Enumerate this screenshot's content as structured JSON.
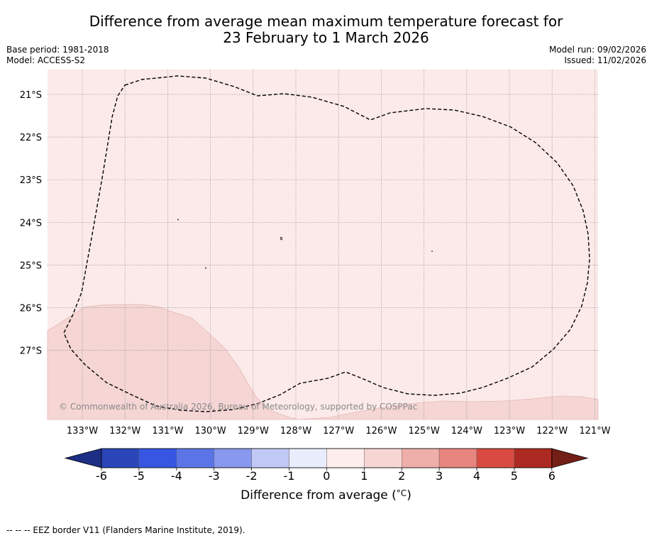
{
  "title": {
    "line1": "Difference from average mean maximum temperature forecast for",
    "line2": "23 February to 1 March 2026"
  },
  "meta": {
    "base_period": "Base period: 1981-2018",
    "model": "Model: ACCESS-S2",
    "model_run": "Model run: 09/02/2026",
    "issued": "Issued: 11/02/2026"
  },
  "map": {
    "lon_labels": [
      "133°W",
      "132°W",
      "131°W",
      "130°W",
      "129°W",
      "128°W",
      "127°W",
      "126°W",
      "125°W",
      "124°W",
      "123°W",
      "122°W",
      "121°W"
    ],
    "lat_labels": [
      "21°S",
      "22°S",
      "23°S",
      "24°S",
      "25°S",
      "26°S",
      "27°S"
    ],
    "copyright": "© Commonwealth of Australia 2026, Bureau of Meteorology, supported by COSPPac",
    "colors": {
      "background_anomaly_0_1": "#fbeae9",
      "anomaly_1_2": "#f5d6d4",
      "grid": "#888888",
      "eez_border": "#000000"
    }
  },
  "colorbar": {
    "tick_labels": [
      "-6",
      "-5",
      "-4",
      "-3",
      "-2",
      "-1",
      "0",
      "1",
      "2",
      "3",
      "4",
      "5",
      "6"
    ],
    "colors": [
      "#1c2f84",
      "#2a46b8",
      "#3756e2",
      "#5c75e6",
      "#8798ee",
      "#c0c8f5",
      "#e9ecfb",
      "#fdeeed",
      "#f6d6d3",
      "#eeaea9",
      "#e8857f",
      "#d94b40",
      "#ac2a22",
      "#731f18"
    ],
    "label": "Difference from average (",
    "label_unit": "°C",
    "label_end": ")"
  },
  "footnote": "--  --  -- EEZ border V11 (Flanders Marine Institute, 2019)."
}
